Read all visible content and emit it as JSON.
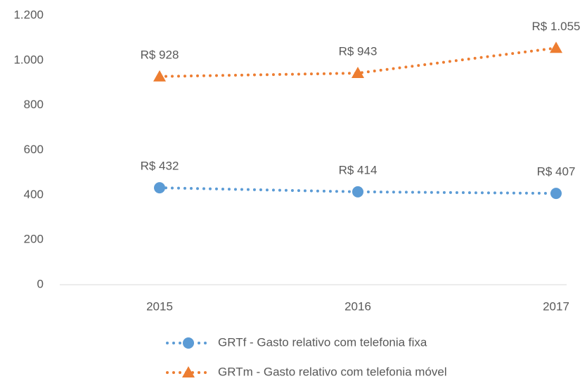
{
  "chart_data": {
    "type": "line",
    "categories": [
      "2015",
      "2016",
      "2017"
    ],
    "series": [
      {
        "name": "GRTf - Gasto relativo com telefonia fixa",
        "color": "#5b9bd5",
        "marker": "circle",
        "values": [
          432,
          414,
          407
        ],
        "value_labels": [
          "R$ 432",
          "R$ 414",
          "R$ 407"
        ]
      },
      {
        "name": "GRTm - Gasto relativo com telefonia móvel",
        "color": "#ed7d31",
        "marker": "triangle",
        "values": [
          928,
          943,
          1055
        ],
        "value_labels": [
          "R$ 928",
          "R$ 943",
          "R$ 1.055"
        ]
      }
    ],
    "ylim": [
      0,
      1200
    ],
    "yticks": [
      0,
      200,
      400,
      600,
      800,
      {
        "value": 1000,
        "label": "1.000"
      },
      {
        "value": 1200,
        "label": "1.200"
      }
    ],
    "grid": false,
    "legend": "bottom"
  }
}
